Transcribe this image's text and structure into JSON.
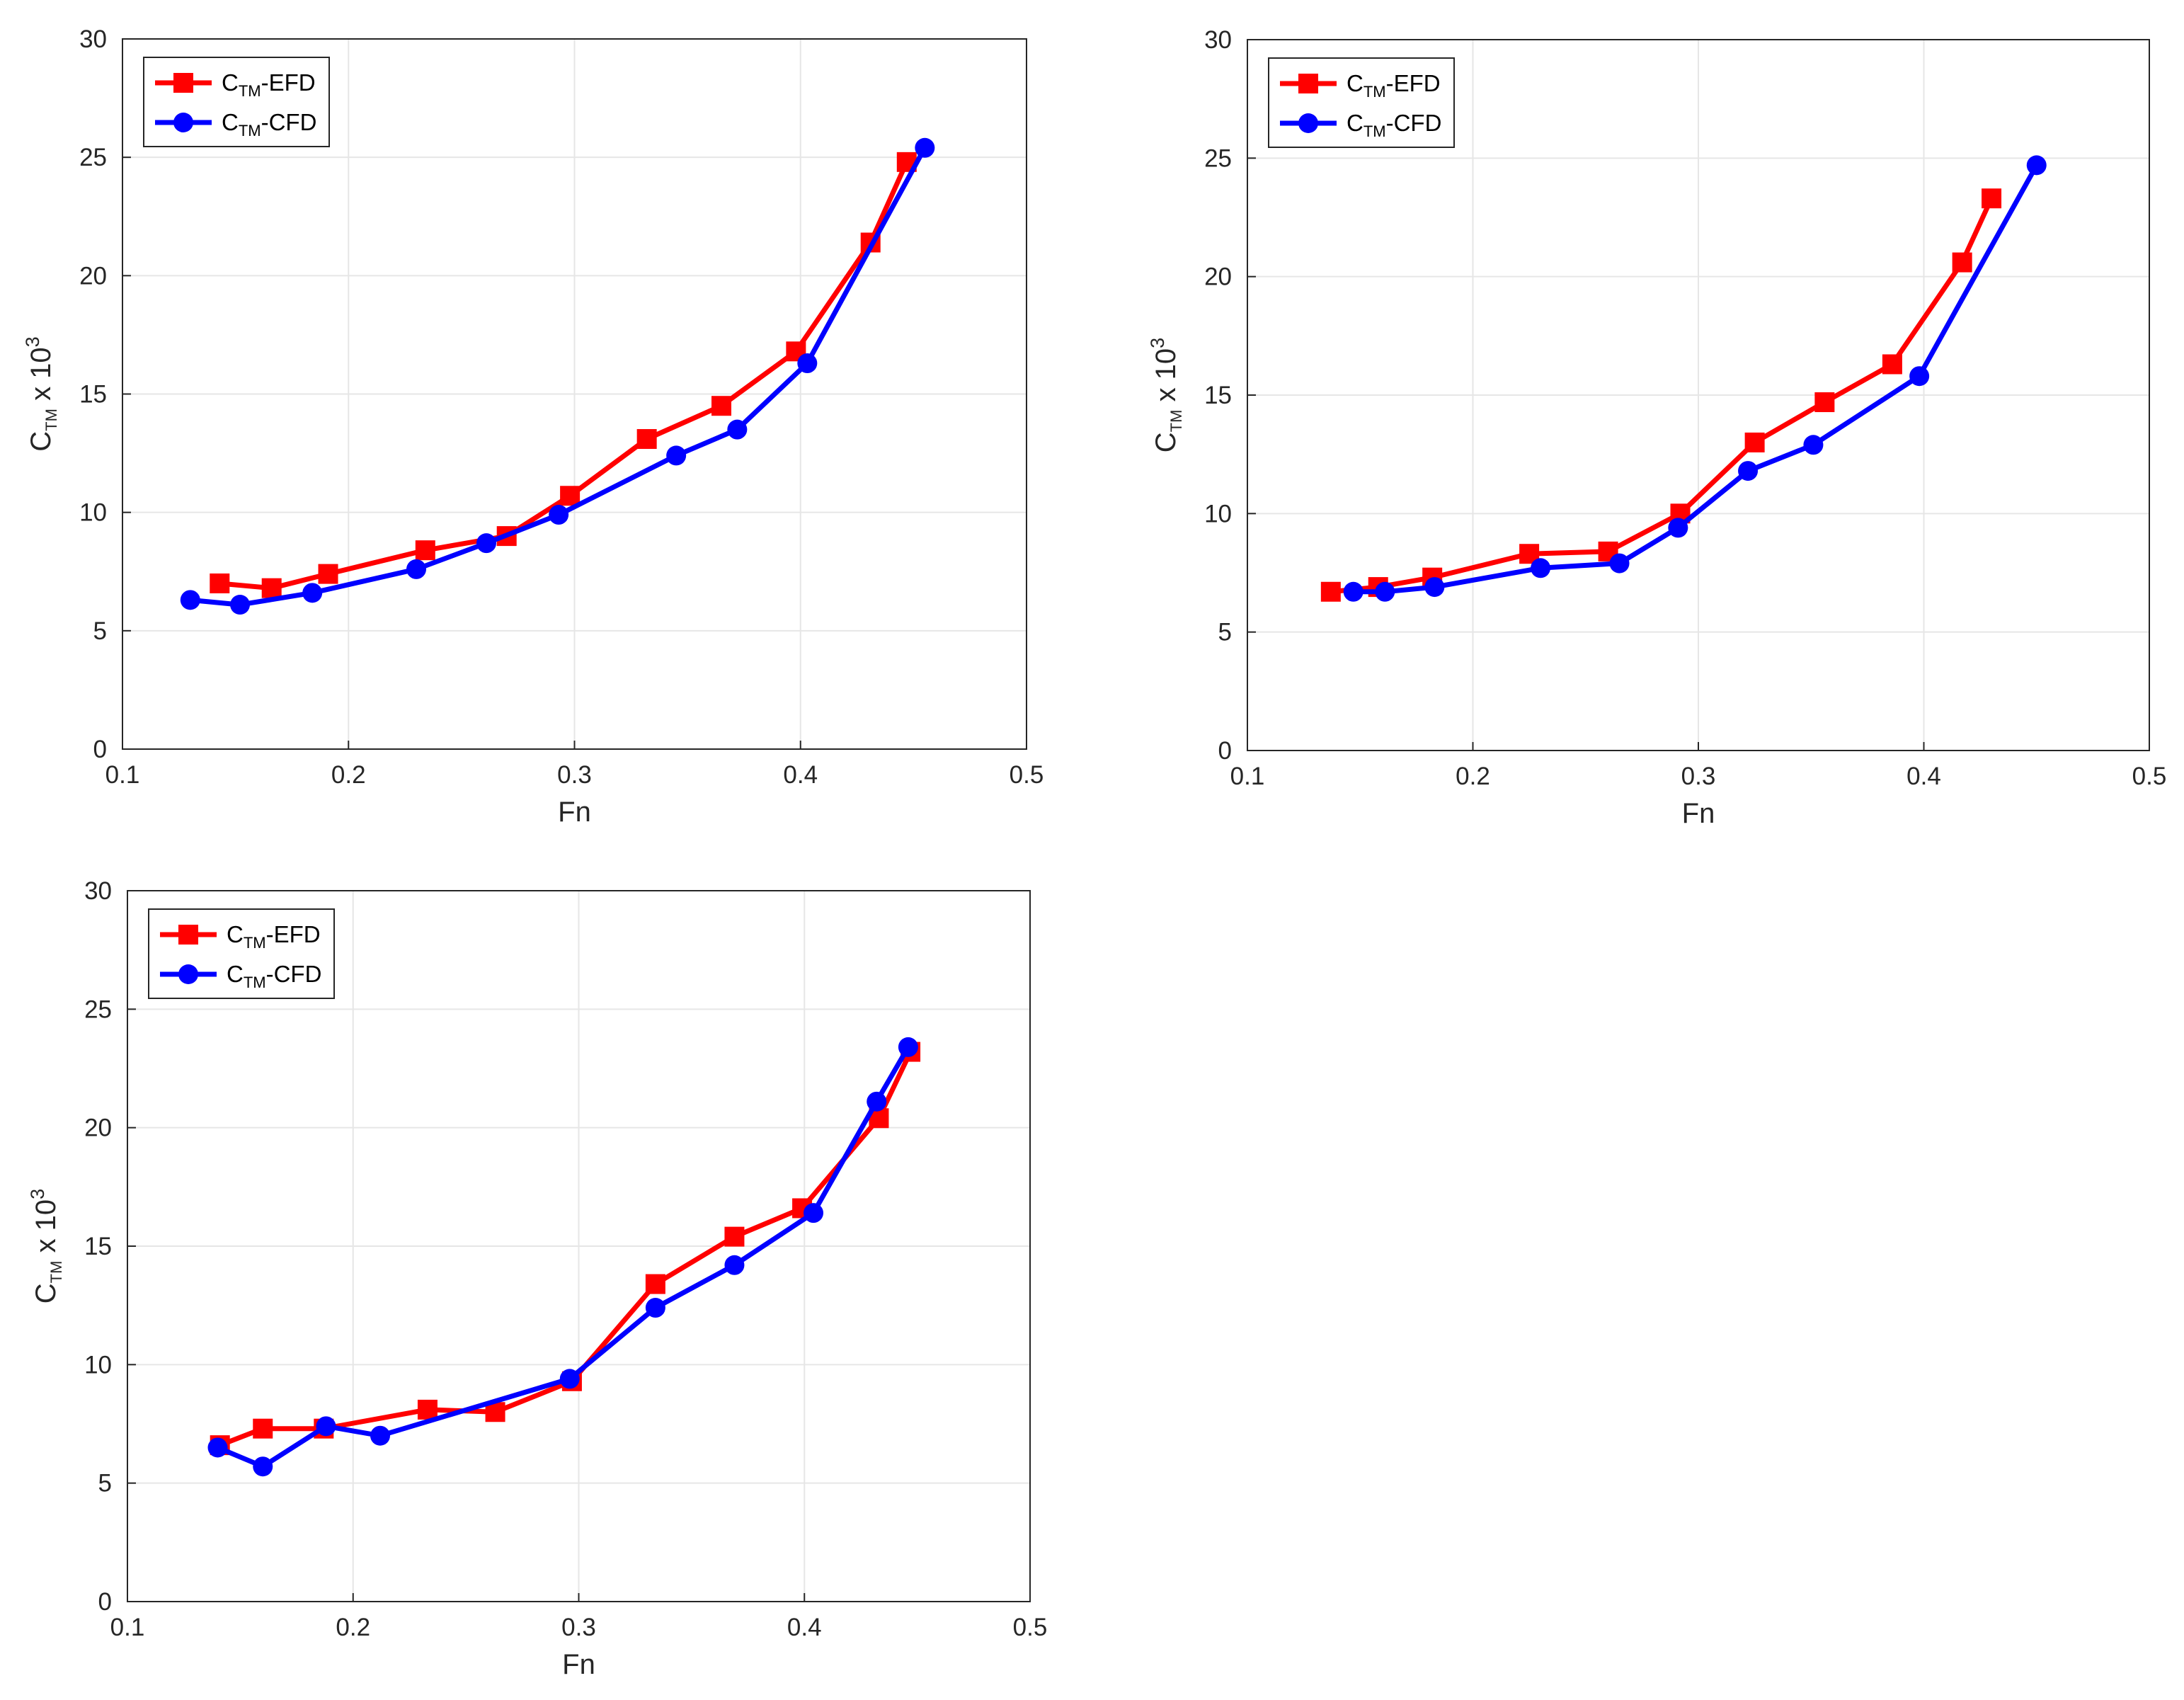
{
  "colors": {
    "efd": "#ff0000",
    "cfd": "#0000ff",
    "axis": "#262626",
    "grid": "#e6e6e6"
  },
  "chart_data": [
    {
      "type": "line",
      "xlabel": "Fn",
      "ylabel": {
        "base": "C",
        "sub": "TM",
        "rest": " x 10",
        "sup": "3"
      },
      "xlim": [
        0.1,
        0.5
      ],
      "ylim": [
        0,
        30
      ],
      "xticks": [
        "0.1",
        "0.2",
        "0.3",
        "0.4",
        "0.5"
      ],
      "yticks": [
        "0",
        "5",
        "10",
        "15",
        "20",
        "25",
        "30"
      ],
      "grid": true,
      "legend_position": "top-left",
      "series": [
        {
          "name": {
            "base": "C",
            "sub": "TM",
            "rest": "-EFD"
          },
          "marker": "square",
          "color": "#ff0000",
          "x": [
            0.143,
            0.166,
            0.191,
            0.234,
            0.27,
            0.298,
            0.332,
            0.365,
            0.398,
            0.431,
            0.447
          ],
          "y": [
            7.0,
            6.8,
            7.4,
            8.4,
            9.0,
            10.7,
            13.1,
            14.5,
            16.8,
            21.4,
            24.8
          ]
        },
        {
          "name": {
            "base": "C",
            "sub": "TM",
            "rest": "-CFD"
          },
          "marker": "circle",
          "color": "#0000ff",
          "x": [
            0.13,
            0.152,
            0.184,
            0.23,
            0.261,
            0.293,
            0.345,
            0.372,
            0.403,
            0.455
          ],
          "y": [
            6.3,
            6.1,
            6.6,
            7.6,
            8.7,
            9.9,
            12.4,
            13.5,
            16.3,
            25.4
          ]
        }
      ]
    },
    {
      "type": "line",
      "xlabel": "Fn",
      "ylabel": {
        "base": "C",
        "sub": "TM",
        "rest": " x 10",
        "sup": "3"
      },
      "xlim": [
        0.1,
        0.5
      ],
      "ylim": [
        0,
        30
      ],
      "xticks": [
        "0.1",
        "0.2",
        "0.3",
        "0.4",
        "0.5"
      ],
      "yticks": [
        "0",
        "5",
        "10",
        "15",
        "20",
        "25",
        "30"
      ],
      "grid": true,
      "legend_position": "top-left",
      "series": [
        {
          "name": {
            "base": "C",
            "sub": "TM",
            "rest": "-EFD"
          },
          "marker": "square",
          "color": "#ff0000",
          "x": [
            0.137,
            0.158,
            0.182,
            0.225,
            0.26,
            0.292,
            0.325,
            0.356,
            0.386,
            0.417,
            0.43
          ],
          "y": [
            6.7,
            6.9,
            7.3,
            8.3,
            8.4,
            10.0,
            13.0,
            14.7,
            16.3,
            20.6,
            23.3
          ]
        },
        {
          "name": {
            "base": "C",
            "sub": "TM",
            "rest": "-CFD"
          },
          "marker": "circle",
          "color": "#0000ff",
          "x": [
            0.147,
            0.161,
            0.183,
            0.23,
            0.265,
            0.291,
            0.322,
            0.351,
            0.398,
            0.45
          ],
          "y": [
            6.7,
            6.7,
            6.9,
            7.7,
            7.9,
            9.4,
            11.8,
            12.9,
            15.8,
            24.7
          ]
        }
      ]
    },
    {
      "type": "line",
      "xlabel": "Fn",
      "ylabel": {
        "base": "C",
        "sub": "TM",
        "rest": " x 10",
        "sup": "3"
      },
      "xlim": [
        0.1,
        0.5
      ],
      "ylim": [
        0,
        30
      ],
      "xticks": [
        "0.1",
        "0.2",
        "0.3",
        "0.4",
        "0.5"
      ],
      "yticks": [
        "0",
        "5",
        "10",
        "15",
        "20",
        "25",
        "30"
      ],
      "grid": true,
      "legend_position": "top-left",
      "series": [
        {
          "name": {
            "base": "C",
            "sub": "TM",
            "rest": "-EFD"
          },
          "marker": "square",
          "color": "#ff0000",
          "x": [
            0.141,
            0.16,
            0.187,
            0.233,
            0.263,
            0.297,
            0.334,
            0.369,
            0.399,
            0.433,
            0.447
          ],
          "y": [
            6.6,
            7.3,
            7.3,
            8.1,
            8.0,
            9.3,
            13.4,
            15.4,
            16.6,
            20.4,
            23.2
          ]
        },
        {
          "name": {
            "base": "C",
            "sub": "TM",
            "rest": "-CFD"
          },
          "marker": "circle",
          "color": "#0000ff",
          "x": [
            0.14,
            0.16,
            0.188,
            0.212,
            0.296,
            0.334,
            0.369,
            0.404,
            0.432,
            0.446
          ],
          "y": [
            6.5,
            5.7,
            7.4,
            7.0,
            9.4,
            12.4,
            14.2,
            16.4,
            21.1,
            23.4
          ]
        }
      ]
    }
  ]
}
